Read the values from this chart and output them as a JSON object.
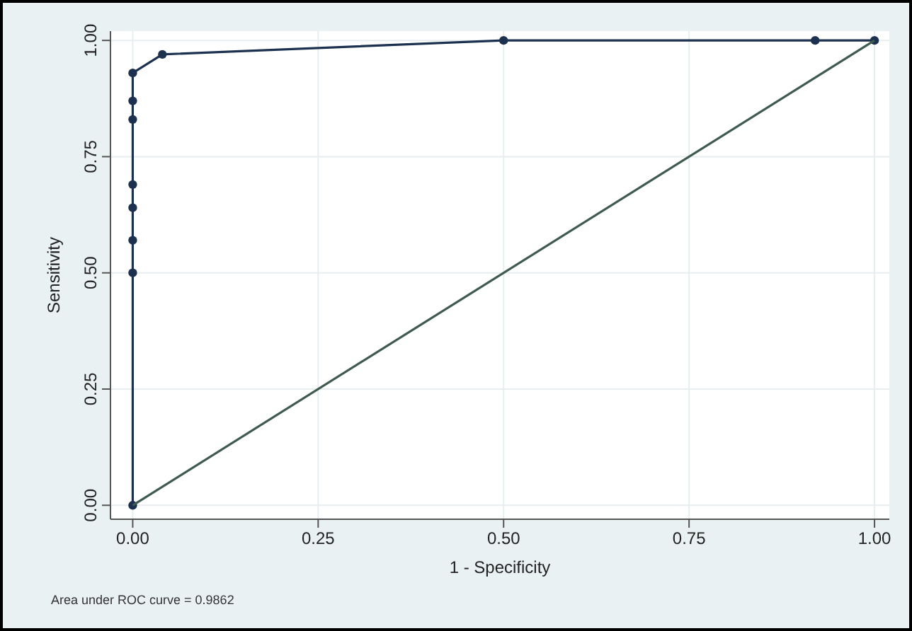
{
  "chart_data": {
    "type": "line",
    "xlabel": "1 - Specificity",
    "ylabel": "Sensitivity",
    "xlim": [
      -0.03,
      1.02
    ],
    "ylim": [
      -0.03,
      1.02
    ],
    "xticks": [
      {
        "value": 0,
        "label": "0.00"
      },
      0.25,
      {
        "value": 0.5,
        "label": "0.50"
      },
      0.75,
      {
        "value": 1,
        "label": "1.00"
      }
    ],
    "yticks": [
      {
        "value": 0,
        "label": "0.00"
      },
      0.25,
      {
        "value": 0.5,
        "label": "0.50"
      },
      0.75,
      {
        "value": 1,
        "label": "1.00"
      }
    ],
    "grid": true,
    "marker": "circle",
    "series": [
      {
        "color": "#1c3150",
        "x": [
          0,
          0,
          0,
          0,
          0,
          0,
          0,
          0,
          0.04,
          0.5,
          0.92,
          1
        ],
        "values": [
          0,
          0.5,
          0.57,
          0.64,
          0.69,
          0.83,
          0.87,
          0.93,
          0.97,
          1,
          1,
          1
        ]
      },
      {
        "color": "#3f5a4e",
        "marker": "none",
        "x": [
          0,
          1
        ],
        "values": [
          0,
          1
        ]
      }
    ],
    "annotations": [
      "Area under ROC curve = 0.9862"
    ]
  }
}
